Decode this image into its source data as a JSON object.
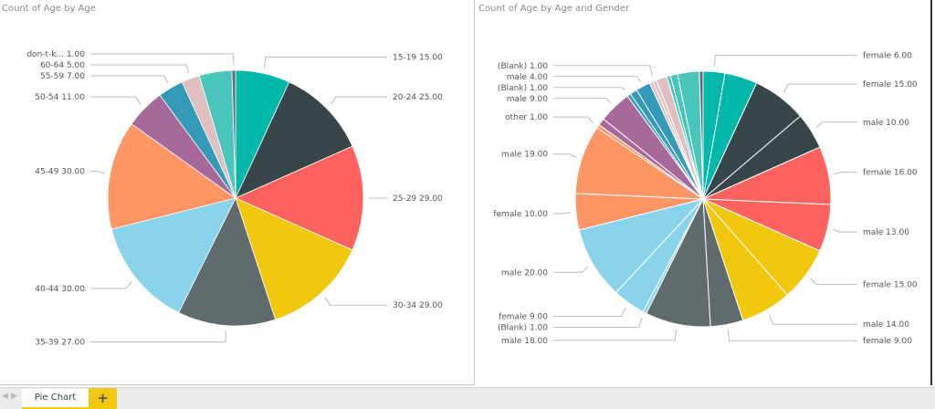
{
  "tabs": {
    "active": "Pie Chart",
    "add_label": "+"
  },
  "chart_data": [
    {
      "type": "pie",
      "title": "Count of Age by Age",
      "slices": [
        {
          "label": "15-19",
          "value": 15,
          "color": "#01b8aa"
        },
        {
          "label": "20-24",
          "value": 25,
          "color": "#374649"
        },
        {
          "label": "25-29",
          "value": 29,
          "color": "#fd625e"
        },
        {
          "label": "30-34",
          "value": 29,
          "color": "#f2c80f"
        },
        {
          "label": "35-39",
          "value": 27,
          "color": "#5f6b6d"
        },
        {
          "label": "40-44",
          "value": 30,
          "color": "#8ad4eb"
        },
        {
          "label": "45-49",
          "value": 30,
          "color": "#fe9666"
        },
        {
          "label": "50-54",
          "value": 11,
          "color": "#a66999"
        },
        {
          "label": "55-59",
          "value": 7,
          "color": "#3599b8"
        },
        {
          "label": "60-64",
          "value": 5,
          "color": "#dfbfbf"
        },
        {
          "label": "",
          "value": 9,
          "color": "#4ac5bb"
        },
        {
          "label": "don-t-k...",
          "value": 1,
          "color": "#5f6b6d"
        }
      ]
    },
    {
      "type": "pie",
      "title": "Count of Age by Age and Gender",
      "slices": [
        {
          "label": "female",
          "value": 6,
          "color": "#01b8aa"
        },
        {
          "label": "",
          "value": 9,
          "color": "#01b8aa"
        },
        {
          "label": "female",
          "value": 15,
          "color": "#374649"
        },
        {
          "label": "male",
          "value": 10,
          "color": "#374649"
        },
        {
          "label": "female",
          "value": 16,
          "color": "#fd625e"
        },
        {
          "label": "male",
          "value": 13,
          "color": "#fd625e"
        },
        {
          "label": "female",
          "value": 15,
          "color": "#f2c80f"
        },
        {
          "label": "male",
          "value": 14,
          "color": "#f2c80f"
        },
        {
          "label": "female",
          "value": 9,
          "color": "#5f6b6d"
        },
        {
          "label": "male",
          "value": 18,
          "color": "#5f6b6d"
        },
        {
          "label": "(Blank)",
          "value": 1,
          "color": "#8ad4eb"
        },
        {
          "label": "female",
          "value": 9,
          "color": "#8ad4eb"
        },
        {
          "label": "male",
          "value": 20,
          "color": "#8ad4eb"
        },
        {
          "label": "female",
          "value": 10,
          "color": "#fe9666"
        },
        {
          "label": "male",
          "value": 19,
          "color": "#fe9666"
        },
        {
          "label": "other",
          "value": 1,
          "color": "#fe9666"
        },
        {
          "label": "",
          "value": 2,
          "color": "#a66999"
        },
        {
          "label": "male",
          "value": 9,
          "color": "#a66999"
        },
        {
          "label": "(Blank)",
          "value": 1,
          "color": "#3599b8"
        },
        {
          "label": "",
          "value": 2,
          "color": "#3599b8"
        },
        {
          "label": "male",
          "value": 4,
          "color": "#3599b8"
        },
        {
          "label": "",
          "value": 1,
          "color": "#dfbfbf"
        },
        {
          "label": "(Blank)",
          "value": 1,
          "color": "#dfbfbf"
        },
        {
          "label": "",
          "value": 3,
          "color": "#dfbfbf"
        },
        {
          "label": "",
          "value": 1,
          "color": "#4ac5bb"
        },
        {
          "label": "",
          "value": 2,
          "color": "#4ac5bb"
        },
        {
          "label": "",
          "value": 6,
          "color": "#4ac5bb"
        },
        {
          "label": "",
          "value": 1,
          "color": "#5f6b6d"
        }
      ]
    }
  ]
}
